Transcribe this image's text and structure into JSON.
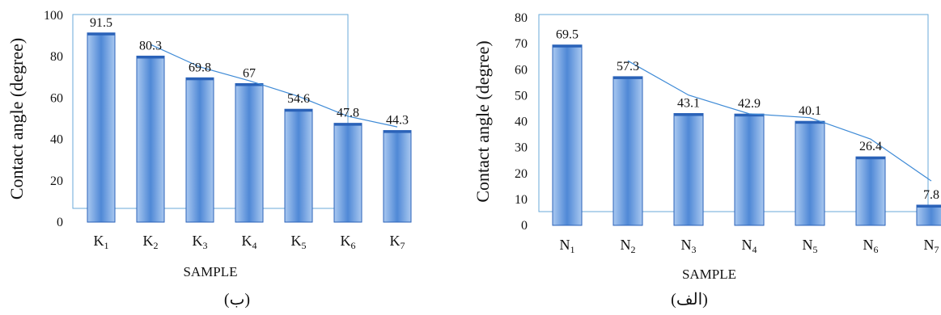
{
  "colors": {
    "bar_fill_top": "#a9c8f0",
    "bar_fill_bottom": "#4f88d6",
    "bar_stroke": "#2a62b8",
    "trend_line": "#3e8ad6",
    "frame": "#6aaad8",
    "text": "#111111"
  },
  "chart_data": [
    {
      "type": "bar",
      "caption": "(ب)",
      "categories": [
        "K1",
        "K2",
        "K3",
        "K4",
        "K5",
        "K6",
        "K7"
      ],
      "category_letter": "K",
      "category_subscripts": [
        "1",
        "2",
        "3",
        "4",
        "5",
        "6",
        "7"
      ],
      "values": [
        91.5,
        80.3,
        69.8,
        67,
        54.6,
        47.8,
        44.3
      ],
      "value_labels": [
        "91.5",
        "80.3",
        "69.8",
        "67",
        "54.6",
        "47.8",
        "44.3"
      ],
      "xlabel": "SAMPLE",
      "ylabel": "Contact angle (degree)",
      "ylim": [
        0,
        100
      ],
      "yticks": [
        0,
        20,
        40,
        60,
        80,
        100
      ],
      "trendline": true,
      "grid": false
    },
    {
      "type": "bar",
      "caption": "(الف)",
      "categories": [
        "N1",
        "N2",
        "N3",
        "N4",
        "N5",
        "N6",
        "N7"
      ],
      "category_letter": "N",
      "category_subscripts": [
        "1",
        "2",
        "3",
        "4",
        "5",
        "6",
        "7"
      ],
      "values": [
        69.5,
        57.3,
        43.1,
        42.9,
        40.1,
        26.4,
        7.8
      ],
      "value_labels": [
        "69.5",
        "57.3",
        "43.1",
        "42.9",
        "40.1",
        "26.4",
        "7.8"
      ],
      "xlabel": "SAMPLE",
      "ylabel": "Contact angle (degree)",
      "ylim": [
        0,
        80
      ],
      "yticks": [
        0,
        10,
        20,
        30,
        40,
        50,
        60,
        70,
        80
      ],
      "trendline": true,
      "grid": false
    }
  ]
}
